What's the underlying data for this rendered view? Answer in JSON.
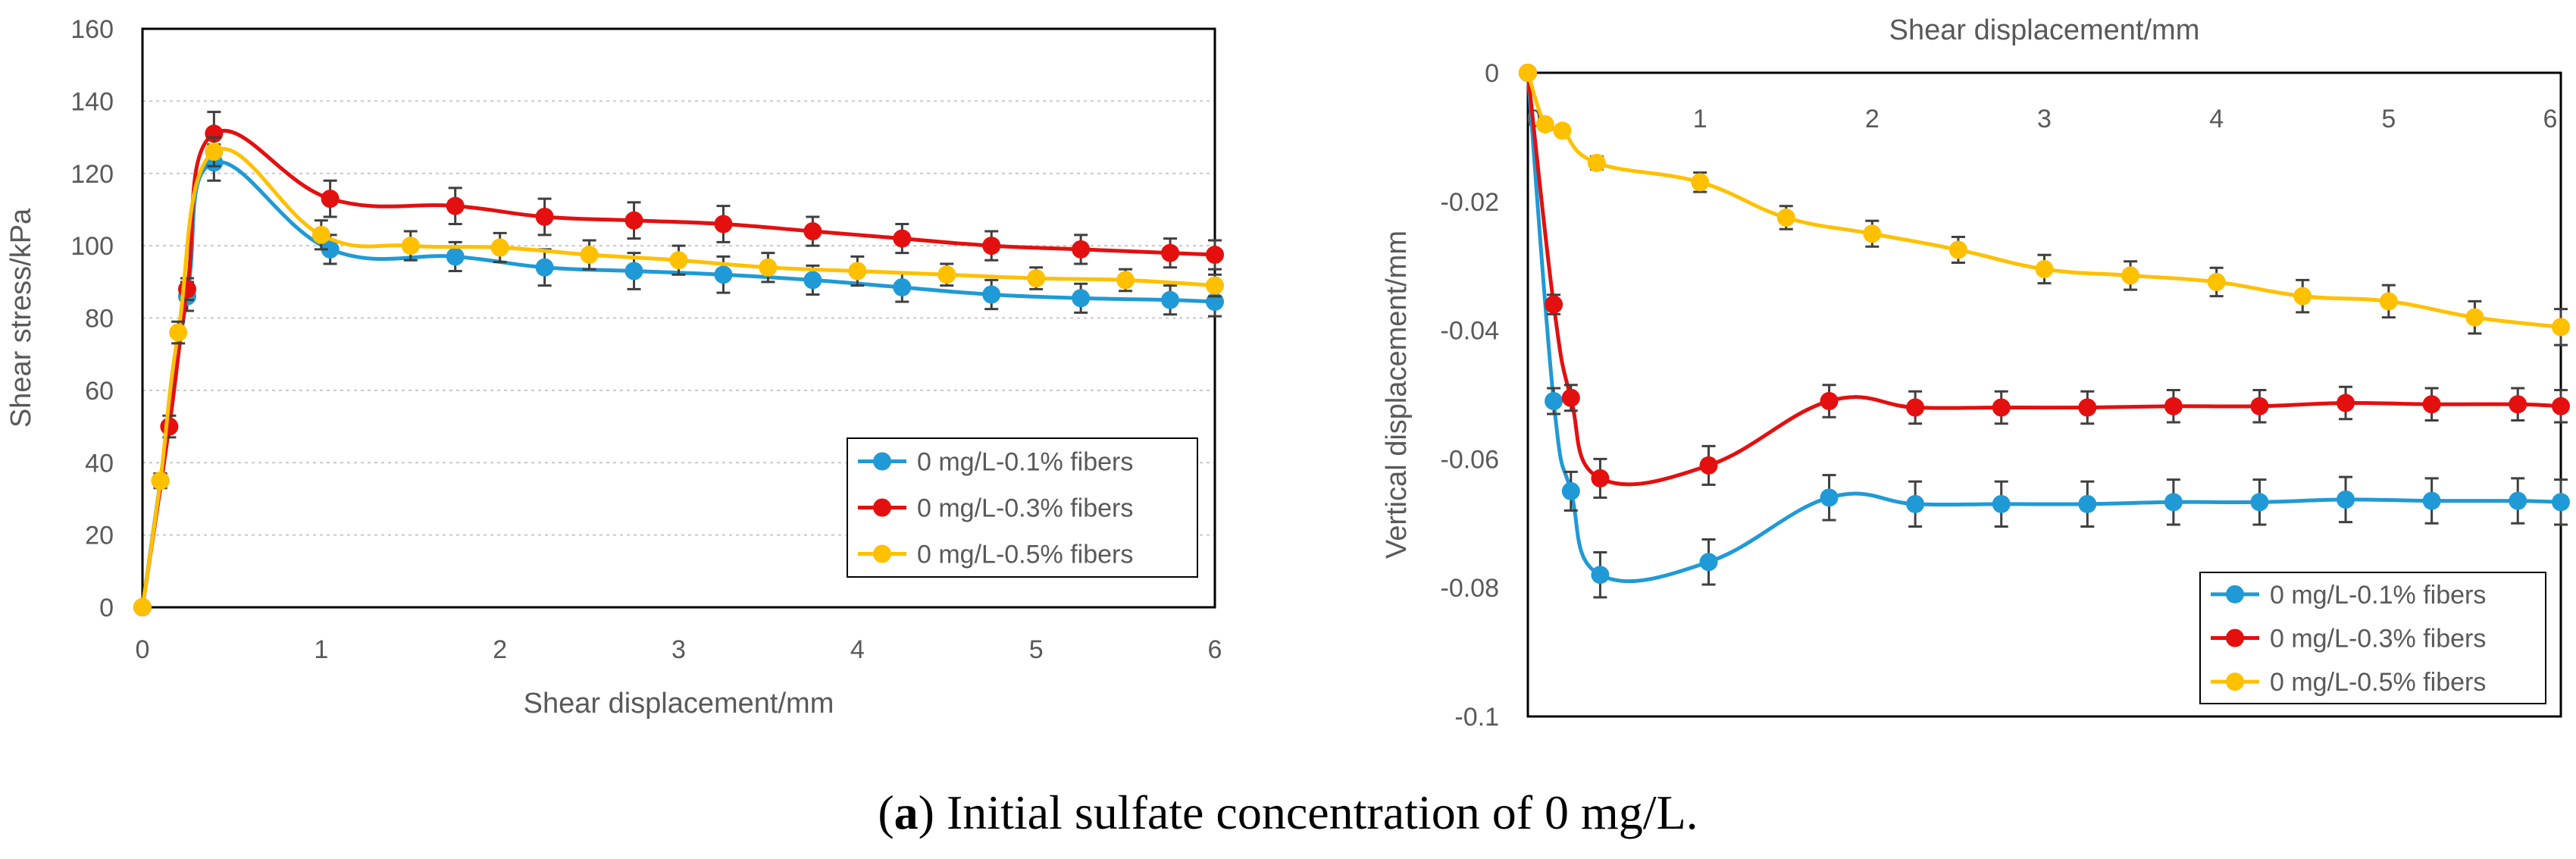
{
  "caption": {
    "label": "a",
    "text": "Initial sulfate concentration of 0 mg/L."
  },
  "chart_data": [
    {
      "type": "line",
      "title": "",
      "xlabel": "Shear displacement/mm",
      "ylabel": "Shear stress/kPa",
      "xlim": [
        0,
        6
      ],
      "ylim": [
        0,
        160
      ],
      "xticks": [
        0,
        1,
        2,
        3,
        4,
        5,
        6
      ],
      "yticks": [
        0,
        20,
        40,
        60,
        80,
        100,
        120,
        140,
        160
      ],
      "grid": "horizontal dotted",
      "legend_position": "bottom-right",
      "series": [
        {
          "name": "0 mg/L-0.1% fibers",
          "color": "#1f9ad6",
          "x": [
            0,
            0.1,
            0.25,
            0.4,
            1.05,
            1.75,
            2.25,
            2.75,
            3.25,
            3.75,
            4.25,
            4.75,
            5.25,
            5.75,
            6.0
          ],
          "y": [
            0,
            35,
            86,
            123,
            99,
            97,
            94,
            93,
            92,
            90.5,
            88.5,
            86.5,
            85.5,
            85,
            84.5
          ],
          "err": [
            0,
            2,
            4,
            5,
            4,
            4,
            5,
            5,
            5,
            4,
            4,
            4,
            4,
            4,
            4
          ]
        },
        {
          "name": "0 mg/L-0.3% fibers",
          "color": "#e40f0f",
          "x": [
            0,
            0.15,
            0.25,
            0.4,
            1.05,
            1.75,
            2.25,
            2.75,
            3.25,
            3.75,
            4.25,
            4.75,
            5.25,
            5.75,
            6.0
          ],
          "y": [
            0,
            50,
            88,
            131,
            113,
            111,
            108,
            107,
            106,
            104,
            102,
            100,
            99,
            98,
            97.5
          ],
          "err": [
            0,
            3,
            3,
            6,
            5,
            5,
            5,
            5,
            5,
            4,
            4,
            4,
            4,
            4,
            4
          ]
        },
        {
          "name": "0 mg/L-0.5% fibers",
          "color": "#ffc000",
          "x": [
            0,
            0.1,
            0.2,
            0.4,
            1.0,
            1.5,
            2.0,
            2.5,
            3.0,
            3.5,
            4.0,
            4.5,
            5.0,
            5.5,
            6.0
          ],
          "y": [
            0,
            35,
            76,
            126,
            103,
            100,
            99.5,
            97.5,
            96,
            94,
            93,
            92,
            91,
            90.5,
            89
          ],
          "err": [
            0,
            2,
            3,
            4,
            4,
            4,
            4,
            4,
            4,
            4,
            4,
            3,
            3,
            3,
            3
          ]
        }
      ]
    },
    {
      "type": "line",
      "title": "",
      "xlabel": "Shear displacement/mm",
      "ylabel": "Vertical displacement/mm",
      "xlim": [
        0,
        6
      ],
      "ylim": [
        -0.1,
        0
      ],
      "xticks": [
        0,
        1,
        2,
        3,
        4,
        5,
        6
      ],
      "yticks": [
        0,
        -0.02,
        -0.04,
        -0.06,
        -0.08,
        -0.1
      ],
      "ytick_labels": [
        "0",
        "-0.02",
        "-0.04",
        "-0.06",
        "-0.08",
        "-0.1"
      ],
      "xaxis_position": "top",
      "grid": "none",
      "legend_position": "bottom-right",
      "series": [
        {
          "name": "0 mg/L-0.1% fibers",
          "color": "#1f9ad6",
          "x": [
            0,
            0.15,
            0.25,
            0.42,
            1.05,
            1.75,
            2.25,
            2.75,
            3.25,
            3.75,
            4.25,
            4.75,
            5.25,
            5.75,
            6.0
          ],
          "y": [
            0,
            -0.051,
            -0.065,
            -0.078,
            -0.076,
            -0.066,
            -0.067,
            -0.067,
            -0.067,
            -0.0667,
            -0.0667,
            -0.0663,
            -0.0665,
            -0.0665,
            -0.0667
          ],
          "err": [
            0,
            0.002,
            0.003,
            0.0035,
            0.0035,
            0.0035,
            0.0035,
            0.0035,
            0.0035,
            0.0035,
            0.0035,
            0.0035,
            0.0035,
            0.0035,
            0.0035
          ]
        },
        {
          "name": "0 mg/L-0.3% fibers",
          "color": "#e40f0f",
          "x": [
            0,
            0.15,
            0.25,
            0.42,
            1.05,
            1.75,
            2.25,
            2.75,
            3.25,
            3.75,
            4.25,
            4.75,
            5.25,
            5.75,
            6.0
          ],
          "y": [
            0,
            -0.036,
            -0.0505,
            -0.063,
            -0.061,
            -0.051,
            -0.052,
            -0.052,
            -0.052,
            -0.0518,
            -0.0518,
            -0.0513,
            -0.0515,
            -0.0515,
            -0.0518
          ],
          "err": [
            0,
            0.0015,
            0.002,
            0.003,
            0.003,
            0.0025,
            0.0025,
            0.0025,
            0.0025,
            0.0025,
            0.0025,
            0.0025,
            0.0025,
            0.0025,
            0.0025
          ]
        },
        {
          "name": "0 mg/L-0.5% fibers",
          "color": "#ffc000",
          "x": [
            0,
            0.1,
            0.2,
            0.4,
            1.0,
            1.5,
            2.0,
            2.5,
            3.0,
            3.5,
            4.0,
            4.5,
            5.0,
            5.5,
            6.0
          ],
          "y": [
            0,
            -0.008,
            -0.009,
            -0.014,
            -0.017,
            -0.0225,
            -0.025,
            -0.0275,
            -0.0305,
            -0.0315,
            -0.0325,
            -0.0347,
            -0.0355,
            -0.038,
            -0.0395
          ],
          "err": [
            0,
            0.0008,
            0.0008,
            0.001,
            0.0015,
            0.0018,
            0.002,
            0.002,
            0.0022,
            0.0022,
            0.0022,
            0.0025,
            0.0025,
            0.0025,
            0.0028
          ]
        }
      ]
    }
  ]
}
